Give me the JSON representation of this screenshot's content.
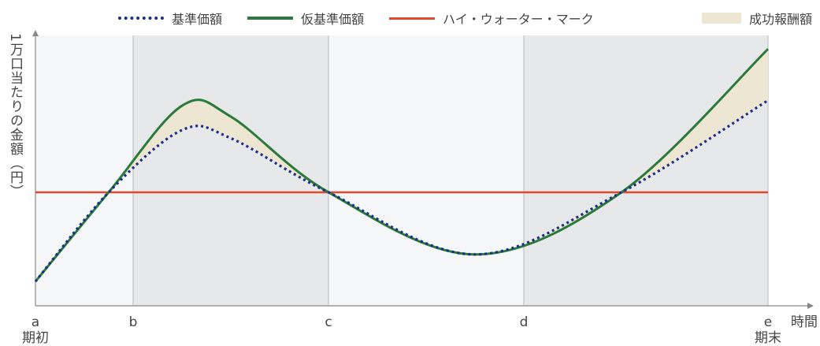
{
  "legend": {
    "base_nav": "基準価額",
    "provisional_nav": "仮基準価額",
    "high_water_mark": "ハイ・ウォーター・マーク",
    "performance_fee": "成功報酬額"
  },
  "chart_data": {
    "type": "line",
    "ylabel": "1万口当たりの金額（円）",
    "xlabel": "時間",
    "x_ticks": [
      "a",
      "b",
      "c",
      "d",
      "e"
    ],
    "x_sublabels": {
      "a": "期初",
      "e": "期末"
    },
    "high_water_mark": 0.42,
    "shaded_periods": [
      [
        "b",
        "c"
      ],
      [
        "d",
        "e"
      ]
    ],
    "series": [
      {
        "name": "基準価額",
        "style": "dotted",
        "color": "#1a2e8a",
        "points": [
          [
            0,
            0.09
          ],
          [
            0.75,
            0.42
          ],
          [
            1.5,
            0.65
          ],
          [
            2,
            0.62
          ],
          [
            3,
            0.42
          ],
          [
            4.5,
            0.19
          ],
          [
            6,
            0.42
          ],
          [
            7.5,
            0.76
          ]
        ]
      },
      {
        "name": "仮基準価額",
        "style": "solid",
        "color": "#2b7a3b",
        "points": [
          [
            0,
            0.09
          ],
          [
            0.75,
            0.42
          ],
          [
            1.5,
            0.74
          ],
          [
            2,
            0.7
          ],
          [
            3,
            0.42
          ],
          [
            4.5,
            0.19
          ],
          [
            6,
            0.42
          ],
          [
            7.5,
            0.95
          ]
        ]
      },
      {
        "name": "ハイ・ウォーター・マーク",
        "style": "solid",
        "color": "#e04a2f",
        "points": [
          [
            0,
            0.42
          ],
          [
            7.5,
            0.42
          ]
        ]
      }
    ],
    "fill_between": {
      "name": "成功報酬額",
      "color": "#ece6d3",
      "series": [
        "仮基準価額",
        "基準価額"
      ]
    },
    "colors": {
      "band": "#e6e8ea",
      "plot_bg": "#f5f6f7",
      "axis": "#888888"
    }
  }
}
